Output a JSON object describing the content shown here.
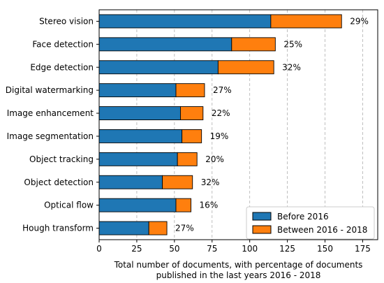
{
  "chart_data": {
    "type": "bar",
    "orientation": "horizontal",
    "stacked": true,
    "categories": [
      "Stereo vision",
      "Face detection",
      "Edge detection",
      "Digital watermarking",
      "Image enhancement",
      "Image segmentation",
      "Object tracking",
      "Object detection",
      "Optical flow",
      "Hough transform"
    ],
    "series": [
      {
        "name": "Before 2016",
        "color": "#1f77b4",
        "values": [
          114,
          88,
          79,
          51,
          54,
          55,
          52,
          42,
          51,
          33
        ]
      },
      {
        "name": "Between 2016 - 2018",
        "color": "#ff7f0e",
        "values": [
          47,
          29,
          37,
          19,
          15,
          13,
          13,
          20,
          10,
          12
        ]
      }
    ],
    "data_labels": [
      "29%",
      "25%",
      "32%",
      "27%",
      "22%",
      "19%",
      "20%",
      "32%",
      "16%",
      "27%"
    ],
    "xlabel": "Total number of documents, with percentage of documents published in the last years 2016 - 2018",
    "xlabel_lines": [
      "Total number of documents, with percentage of documents",
      "published in the last years 2016 - 2018"
    ],
    "xlim": [
      0,
      185
    ],
    "xticks": [
      0,
      25,
      50,
      75,
      100,
      125,
      150,
      175
    ],
    "ylabel": "",
    "grid": "vertical dashed",
    "legend_position": "bottom-right"
  }
}
